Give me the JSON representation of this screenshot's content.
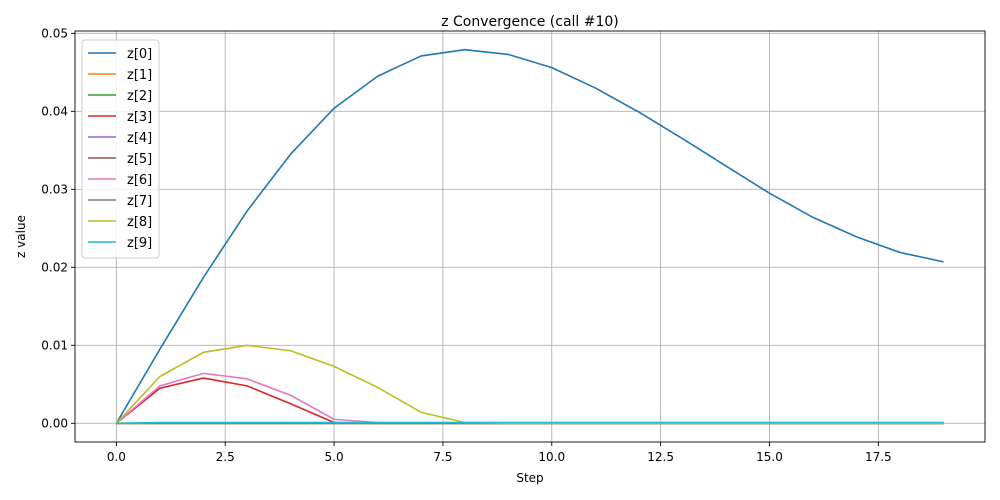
{
  "chart_data": {
    "type": "line",
    "title": "z Convergence (call #10)",
    "xlabel": "Step",
    "ylabel": "z value",
    "xlim": [
      -0.95,
      19.95
    ],
    "ylim": [
      -0.0024,
      0.0503
    ],
    "xticks": [
      0.0,
      2.5,
      5.0,
      7.5,
      10.0,
      12.5,
      15.0,
      17.5
    ],
    "xtick_labels": [
      "0.0",
      "2.5",
      "5.0",
      "7.5",
      "10.0",
      "12.5",
      "15.0",
      "17.5"
    ],
    "yticks": [
      0.0,
      0.01,
      0.02,
      0.03,
      0.04,
      0.05
    ],
    "ytick_labels": [
      "0.00",
      "0.01",
      "0.02",
      "0.03",
      "0.04",
      "0.05"
    ],
    "grid": true,
    "legend_position": "top-left",
    "x": [
      0,
      1,
      2,
      3,
      4,
      5,
      6,
      7,
      8,
      9,
      10,
      11,
      12,
      13,
      14,
      15,
      16,
      17,
      18,
      19
    ],
    "series": [
      {
        "name": "z[0]",
        "color": "#1f77b4",
        "values": [
          0,
          0.0095,
          0.0187,
          0.0272,
          0.0345,
          0.0404,
          0.0445,
          0.0471,
          0.0479,
          0.0473,
          0.0456,
          0.043,
          0.0399,
          0.0365,
          0.033,
          0.0295,
          0.0264,
          0.0239,
          0.0219,
          0.0207
        ]
      },
      {
        "name": "z[1]",
        "color": "#ff7f0e",
        "values": [
          0,
          0,
          0,
          0,
          0,
          0,
          0,
          0,
          0,
          0,
          0,
          0,
          0,
          0,
          0,
          0,
          0,
          0,
          0,
          0
        ]
      },
      {
        "name": "z[2]",
        "color": "#2ca02c",
        "values": [
          0,
          0,
          0,
          0,
          0,
          0,
          0,
          0,
          0,
          0,
          0,
          0,
          0,
          0,
          0,
          0,
          0,
          0,
          0,
          0
        ]
      },
      {
        "name": "z[3]",
        "color": "#d62728",
        "values": [
          0,
          0.0045,
          0.0058,
          0.0048,
          0.0025,
          0.0001,
          0,
          0,
          0,
          0,
          0,
          0,
          0,
          0,
          0,
          0,
          0,
          0,
          0,
          0
        ]
      },
      {
        "name": "z[4]",
        "color": "#9467bd",
        "values": [
          0,
          0,
          0,
          0,
          0,
          0,
          0,
          0,
          0,
          0,
          0,
          0,
          0,
          0,
          0,
          0,
          0,
          0,
          0,
          0
        ]
      },
      {
        "name": "z[5]",
        "color": "#8c564b",
        "values": [
          0,
          0,
          0,
          0,
          0,
          0,
          0,
          0,
          0,
          0,
          0,
          0,
          0,
          0,
          0,
          0,
          0,
          0,
          0,
          0
        ]
      },
      {
        "name": "z[6]",
        "color": "#e377c2",
        "values": [
          0,
          0.0048,
          0.0064,
          0.0057,
          0.0036,
          0.0005,
          0.0001,
          0,
          0,
          0,
          0,
          0,
          0,
          0,
          0,
          0,
          0,
          0,
          0,
          0
        ]
      },
      {
        "name": "z[7]",
        "color": "#7f7f7f",
        "values": [
          0,
          0,
          0,
          0,
          0,
          0,
          0,
          0,
          0,
          0,
          0,
          0,
          0,
          0,
          0,
          0,
          0,
          0,
          0,
          0
        ]
      },
      {
        "name": "z[8]",
        "color": "#bcbd22",
        "values": [
          0,
          0.006,
          0.0091,
          0.01,
          0.0093,
          0.0073,
          0.0046,
          0.0014,
          0.0001,
          0,
          0,
          0,
          0,
          0,
          0,
          0,
          0,
          0,
          0,
          0
        ]
      },
      {
        "name": "z[9]",
        "color": "#17becf",
        "values": [
          0,
          0.0001,
          0.0001,
          0.0001,
          0.0001,
          0.0001,
          0.0001,
          0.0001,
          0.0001,
          0.0001,
          0.0001,
          0.0001,
          0.0001,
          0.0001,
          0.0001,
          0.0001,
          0.0001,
          0.0001,
          0.0001,
          0.0001
        ]
      }
    ]
  }
}
